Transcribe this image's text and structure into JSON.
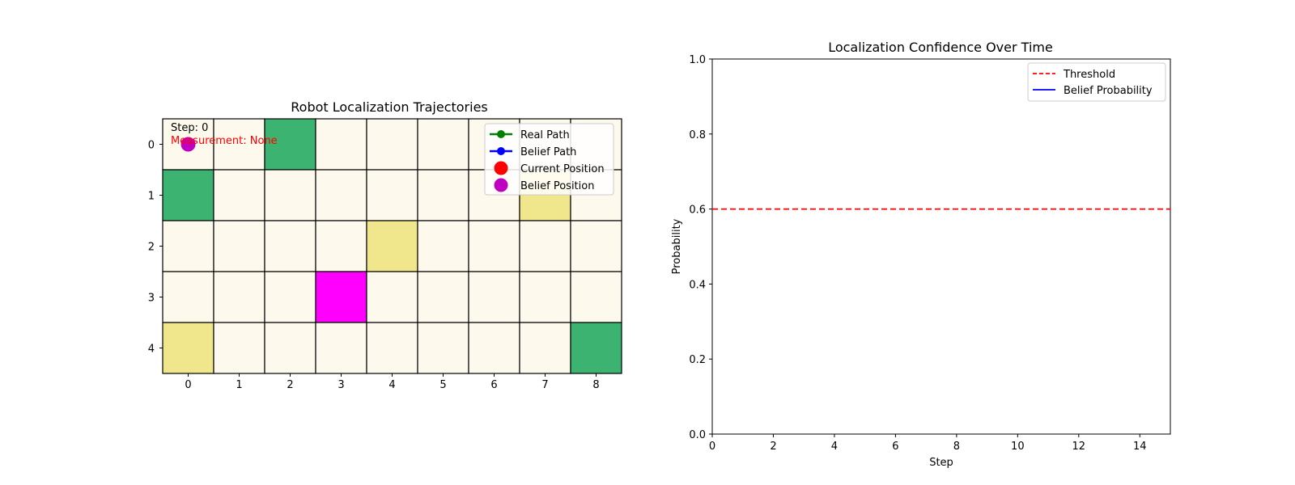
{
  "chart_data": [
    {
      "type": "heatmap",
      "title": "Robot Localization Trajectories",
      "cols": 9,
      "rows": 5,
      "x_ticks": [
        "0",
        "1",
        "2",
        "3",
        "4",
        "5",
        "6",
        "7",
        "8"
      ],
      "y_ticks": [
        "0",
        "1",
        "2",
        "3",
        "4"
      ],
      "colors": {
        "empty": "#fdf9ed",
        "green": "#3cb371",
        "yellow": "#f0e68c",
        "magenta": "#ff00ff"
      },
      "grid": [
        [
          "empty",
          "empty",
          "green",
          "empty",
          "empty",
          "empty",
          "empty",
          "empty",
          "empty"
        ],
        [
          "green",
          "empty",
          "empty",
          "empty",
          "empty",
          "empty",
          "empty",
          "yellow",
          "empty"
        ],
        [
          "empty",
          "empty",
          "empty",
          "empty",
          "yellow",
          "empty",
          "empty",
          "empty",
          "empty"
        ],
        [
          "empty",
          "empty",
          "empty",
          "magenta",
          "empty",
          "empty",
          "empty",
          "empty",
          "empty"
        ],
        [
          "yellow",
          "empty",
          "empty",
          "empty",
          "empty",
          "empty",
          "empty",
          "empty",
          "green"
        ]
      ],
      "step_text": "Step: 0",
      "measurement_text": "Measurement:  None",
      "belief_position": {
        "x": 0,
        "y": 0
      },
      "legend": {
        "placement": "top-right",
        "entries": [
          {
            "label": "Real Path",
            "style": "line-marker",
            "color": "#008000"
          },
          {
            "label": "Belief Path",
            "style": "line-marker",
            "color": "#0000ff"
          },
          {
            "label": "Current Position",
            "style": "marker",
            "color": "#ff0000"
          },
          {
            "label": "Belief Position",
            "style": "marker",
            "color": "#c000c0"
          }
        ]
      }
    },
    {
      "type": "line",
      "title": "Localization Confidence Over Time",
      "xlabel": "Step",
      "ylabel": "Probability",
      "xlim": [
        0,
        15
      ],
      "ylim": [
        0,
        1
      ],
      "x_ticks": [
        0,
        2,
        4,
        6,
        8,
        10,
        12,
        14
      ],
      "y_ticks": [
        "0.0",
        "0.2",
        "0.4",
        "0.6",
        "0.8",
        "1.0"
      ],
      "grid": false,
      "series": [
        {
          "name": "Threshold",
          "kind": "hline",
          "y": 0.6,
          "color": "#ff0000",
          "dash": true
        },
        {
          "name": "Belief Probability",
          "kind": "line",
          "x": [],
          "y": [],
          "color": "#0000ff"
        }
      ],
      "legend": {
        "placement": "top-right"
      }
    }
  ]
}
